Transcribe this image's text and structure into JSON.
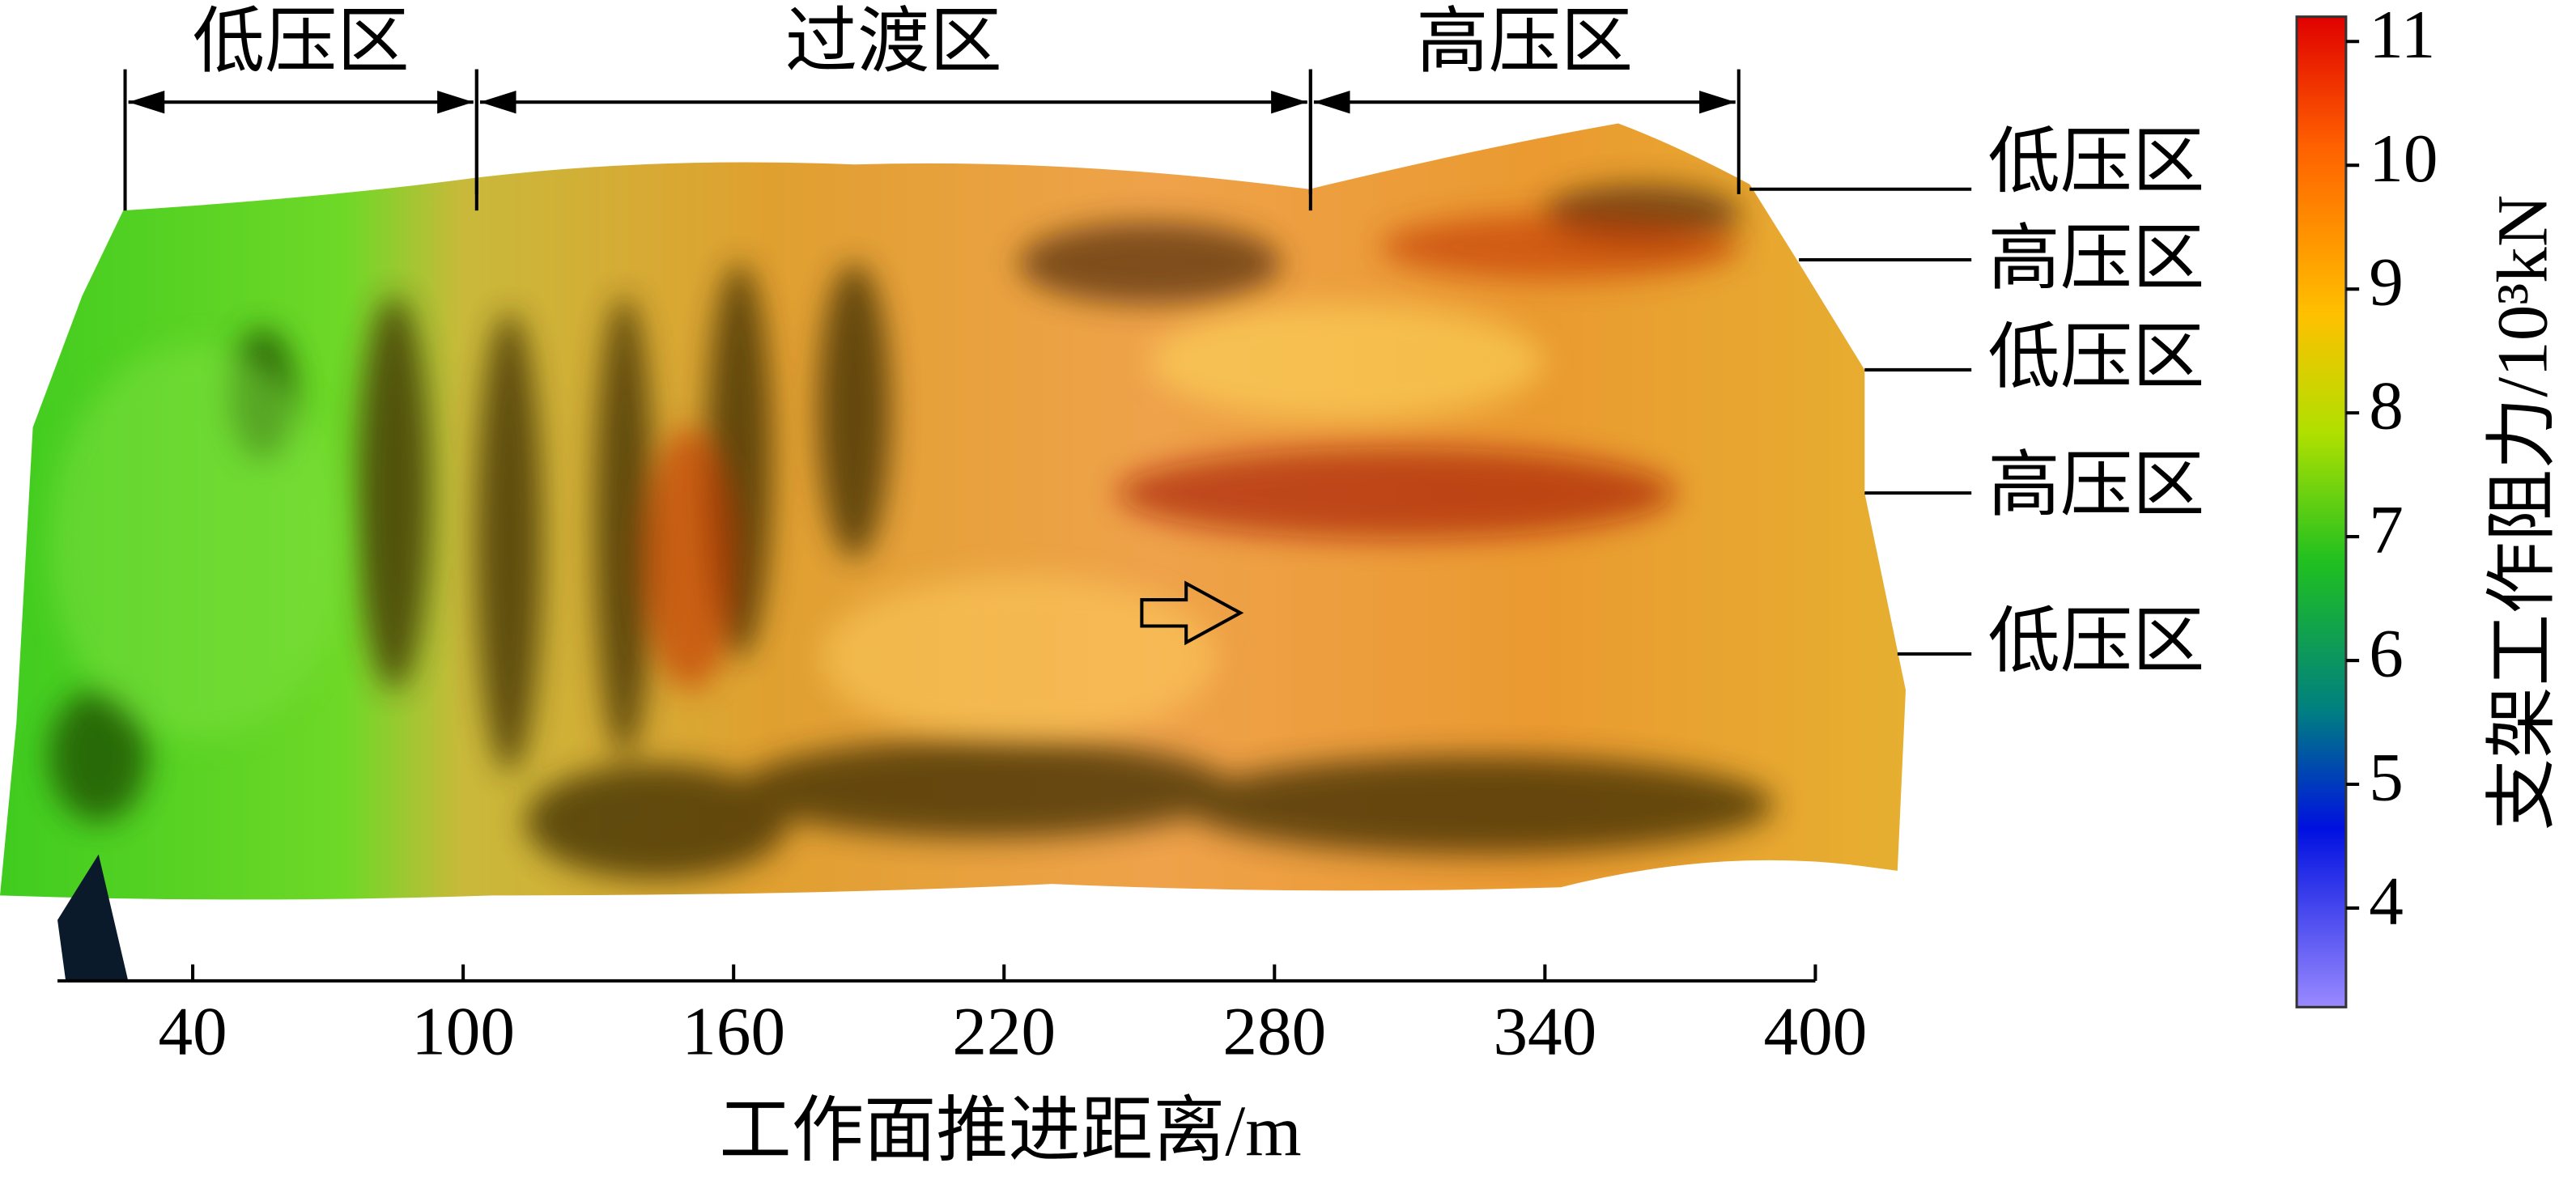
{
  "chart_data": {
    "type": "surface",
    "x_label": "工作面推进距离/m",
    "xlim": [
      10,
      400
    ],
    "xticks": [
      40,
      100,
      160,
      220,
      280,
      340,
      400
    ],
    "colorbar": {
      "label": "支架工作阻力/10³kN",
      "lim": [
        3.2,
        11.2
      ],
      "ticks": [
        4,
        5,
        6,
        7,
        8,
        9,
        10,
        11
      ]
    },
    "zones": [
      {
        "label": "低压区",
        "range": [
          25,
          103
        ]
      },
      {
        "label": "过渡区",
        "range": [
          103,
          288
        ]
      },
      {
        "label": "高压区",
        "range": [
          288,
          383
        ]
      }
    ],
    "side_labels": [
      "低压区",
      "高压区",
      "低压区",
      "高压区",
      "低压区"
    ]
  }
}
